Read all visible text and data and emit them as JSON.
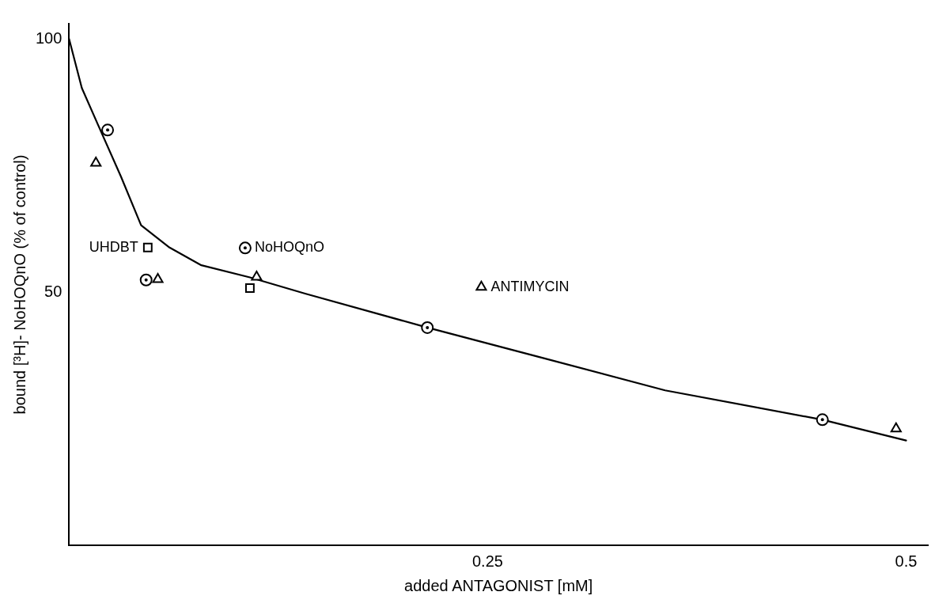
{
  "chart_data": {
    "type": "scatter",
    "xlabel": "added ANTAGONIST [mM]",
    "ylabel": "bound [³H]- NoHOQnO (% of control)",
    "xlim": [
      0,
      0.513
    ],
    "ylim": [
      0,
      103
    ],
    "xticks": [
      0.25,
      0.5
    ],
    "yticks": [
      50,
      100
    ],
    "grid": false,
    "legend": "left",
    "series": [
      {
        "name": "NoHOQnO",
        "color": "#000000",
        "marker": "circle",
        "x": [
          0.023,
          0.046,
          0.214,
          0.45
        ],
        "values": [
          82,
          52.4,
          43,
          24.8
        ]
      },
      {
        "name": "ANTIMYCIN",
        "color": "#000000",
        "marker": "triangle",
        "x": [
          0.016,
          0.053,
          0.112,
          0.494
        ],
        "values": [
          75.5,
          52.5,
          53,
          23
        ]
      },
      {
        "name": "UHDBT",
        "color": "#000000",
        "marker": "square",
        "x": [
          0.047,
          0.108
        ],
        "values": [
          58.8,
          50.8
        ]
      },
      {
        "type": "line",
        "color": "#000000",
        "marker": "none",
        "line_style": "solid",
        "x": [
          0,
          0.0076,
          0.0172,
          0.031,
          0.043,
          0.06,
          0.079,
          0.108,
          0.141,
          0.214,
          0.284,
          0.356,
          0.45,
          0.5
        ],
        "values": [
          100,
          90.3,
          83.1,
          72.8,
          63.2,
          58.8,
          55.3,
          52.9,
          49.7,
          43,
          36.9,
          30.6,
          24.8,
          20.7
        ]
      }
    ]
  }
}
